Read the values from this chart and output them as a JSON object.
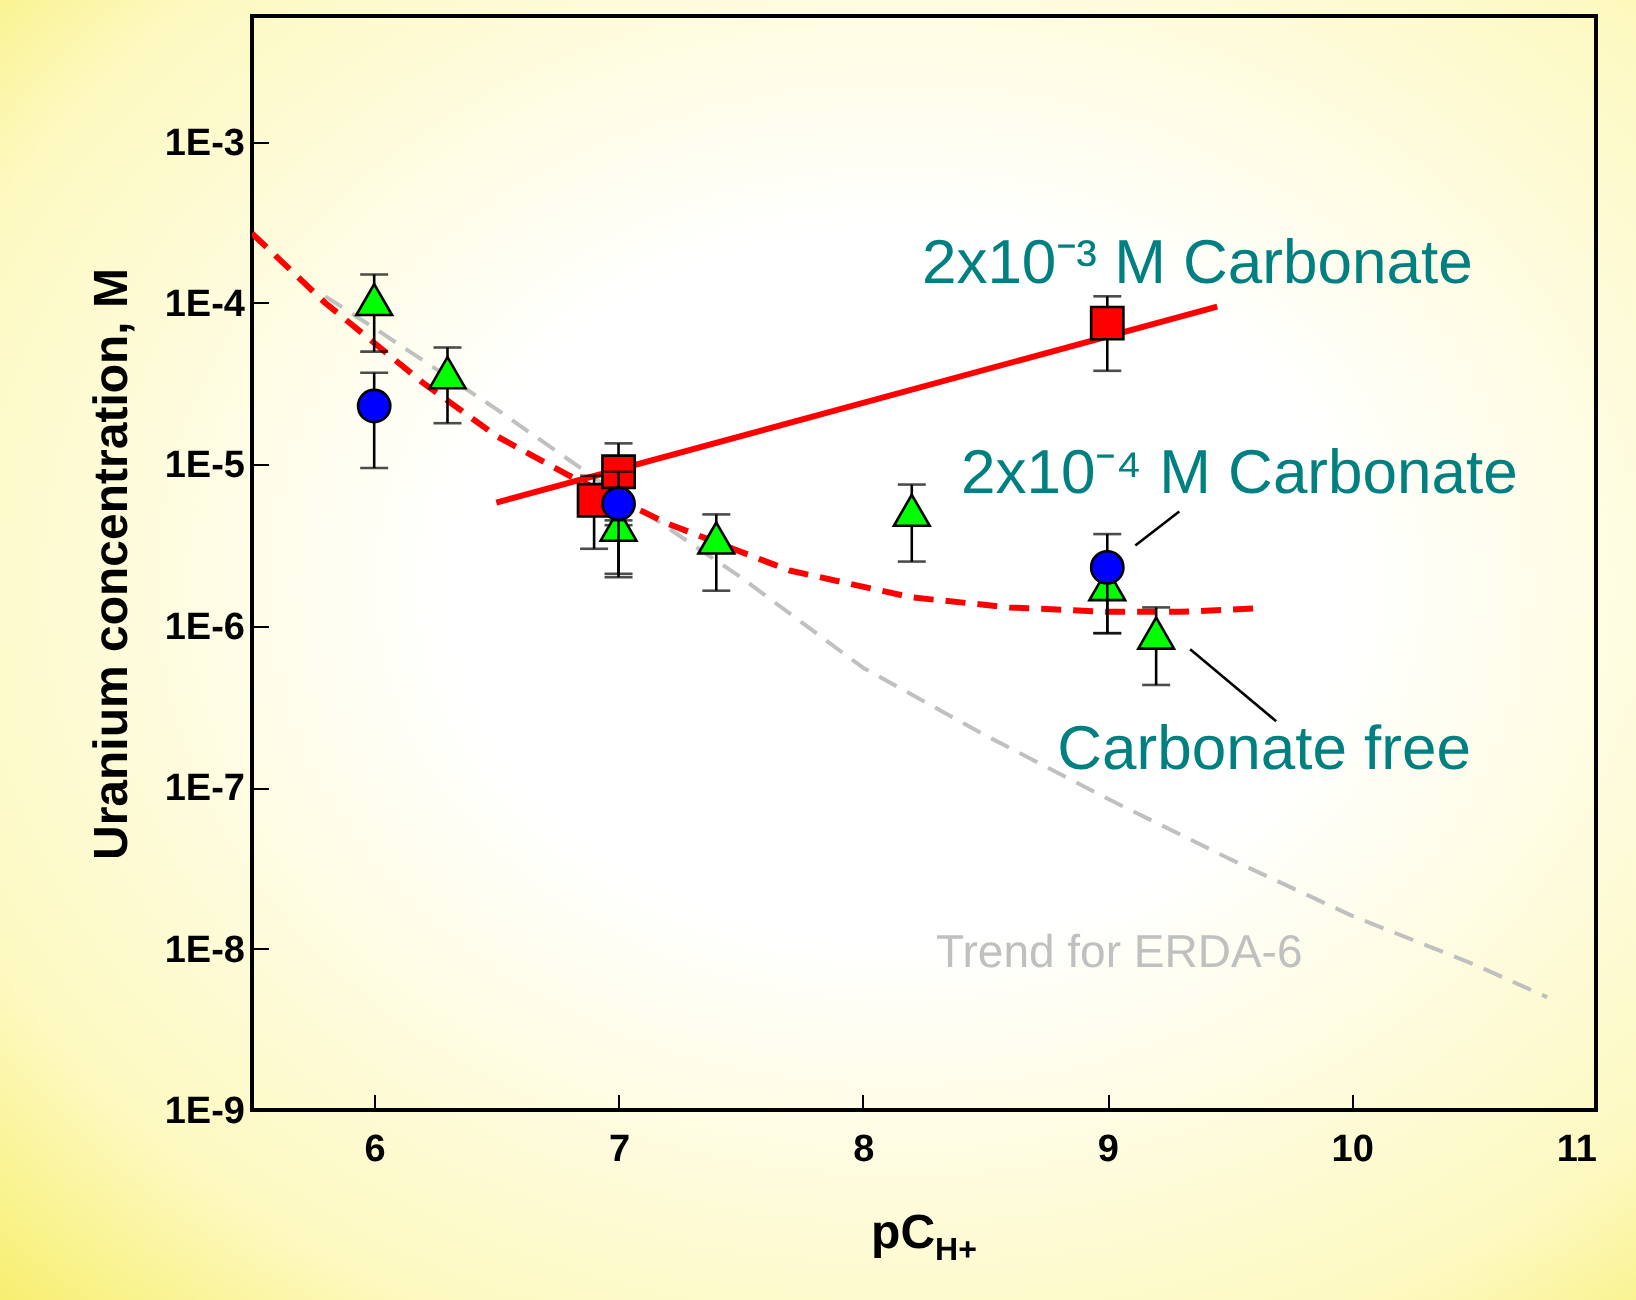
{
  "chart_data": {
    "type": "scatter",
    "xlabel": "pC$_{H+}$",
    "ylabel": "Uranium concentration, M",
    "log": "y",
    "xlim": [
      5.5,
      11
    ],
    "xticks": [
      6,
      7,
      8,
      9,
      10,
      11
    ],
    "ylim": [
      1e-09,
      0.006
    ],
    "yticks": [
      {
        "value": 1e-09,
        "label": "1E-9"
      },
      {
        "value": 1e-08,
        "label": "1E-8"
      },
      {
        "value": 1e-07,
        "label": "1E-7"
      },
      {
        "value": 1e-06,
        "label": "1E-6"
      },
      {
        "value": 1e-05,
        "label": "1E-5"
      },
      {
        "value": 0.0001,
        "label": "1E-4"
      },
      {
        "value": 0.001,
        "label": "1E-3"
      }
    ],
    "series": [
      {
        "type": "line",
        "name": "Trend for ERDA-6",
        "color": "#c0c0c0",
        "line_style": "dashed",
        "marker": "none",
        "x": [
          5.8,
          6,
          6.5,
          7,
          7.5,
          8,
          8.5,
          9,
          9.5,
          10,
          10.5,
          10.8
        ],
        "values": [
          0.00011,
          7e-05,
          2.2e-05,
          6.5e-06,
          2e-06,
          5.5e-07,
          2.1e-07,
          8.5e-08,
          3.6e-08,
          1.6e-08,
          8e-09,
          5e-09
        ]
      },
      {
        "type": "line",
        "color": "#ff0000",
        "line_style": "dashed",
        "marker": "none",
        "x": [
          5.5,
          5.8,
          6.2,
          6.5,
          6.8,
          7.2,
          7.7,
          8.2,
          8.6,
          9,
          9.3,
          9.6
        ],
        "values": [
          0.00027,
          0.0001,
          3.2e-05,
          1.5e-05,
          8.5e-06,
          4.3e-06,
          2.2e-06,
          1.5e-06,
          1.3e-06,
          1.22e-06,
          1.22e-06,
          1.28e-06
        ]
      },
      {
        "type": "line",
        "color": "#ff0000",
        "line_style": "solid",
        "marker": "none",
        "x": [
          6.5,
          9.45
        ],
        "values": [
          5.8e-06,
          9.5e-05
        ]
      },
      {
        "name": "Carbonate free",
        "color": "#00ff00",
        "marker": "triangle",
        "x": [
          6,
          6.3,
          7,
          7.4,
          8.2,
          9,
          9.2
        ],
        "values": [
          0.000105,
          3.7e-05,
          4.2e-06,
          3.5e-06,
          5.2e-06,
          1.8e-06,
          9e-07
        ],
        "errors": [
          [
            5e-05,
            0.00015
          ],
          [
            1.8e-05,
            5.3e-05
          ],
          [
            2e-06,
            4.2e-06
          ],
          [
            1.65e-06,
            4.9e-06
          ],
          [
            2.5e-06,
            7.5e-06
          ],
          [
            9e-07,
            2.6e-06
          ],
          [
            4.3e-07,
            1.3e-06
          ]
        ]
      },
      {
        "name": "2x10⁻³ M Carbonate",
        "color": "#ff0000",
        "marker": "square",
        "x": [
          6.9,
          7,
          9
        ],
        "values": [
          6e-06,
          9e-06,
          7.5e-05
        ],
        "errors": [
          [
            3e-06,
            8.5e-06
          ],
          [
            4.5e-06,
            1.35e-05
          ],
          [
            3.8e-05,
            0.00011
          ]
        ]
      },
      {
        "name": "2x10⁻⁴ M Carbonate",
        "color": "#0000ff",
        "marker": "circle",
        "x": [
          6,
          7,
          9
        ],
        "values": [
          2.3e-05,
          5.7e-06,
          2.3e-06
        ],
        "errors": [
          [
            9.5e-06,
            3.7e-05
          ],
          [
            2.1e-06,
            9e-06
          ],
          [
            9e-07,
            3.7e-06
          ]
        ]
      }
    ]
  }
}
